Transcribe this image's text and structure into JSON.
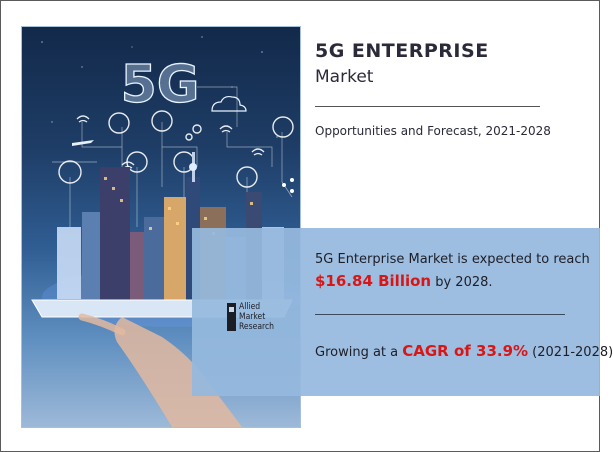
{
  "cover": {
    "badge_text": "5G"
  },
  "header": {
    "title_bold": "5G ENTERPRISE",
    "title_sub": "Market",
    "subtitle": "Opportunities and Forecast, 2021-2028"
  },
  "stats": {
    "line1": "5G Enterprise Market is expected to reach",
    "value_highlight": "$16.84 Billion",
    "value_suffix": " by 2028.",
    "growth_prefix": "Growing at a ",
    "growth_highlight": "CAGR of 33.9%",
    "growth_suffix": " (2021-2028)",
    "highlight_color": "#d91616"
  },
  "logo": {
    "line1": "Allied",
    "line2": "Market",
    "line3": "Research"
  }
}
